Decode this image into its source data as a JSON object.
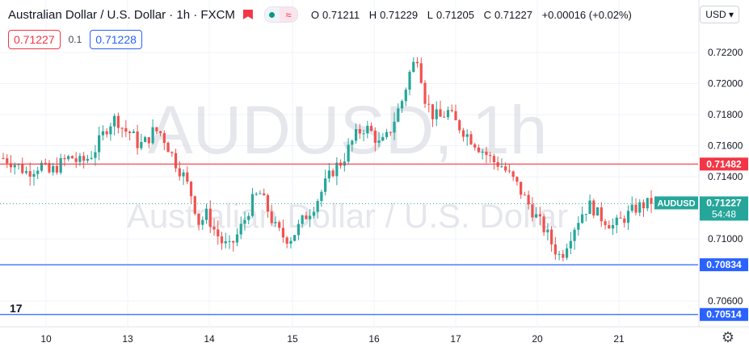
{
  "header": {
    "title": "Australian Dollar / U.S. Dollar · 1h · FXCM",
    "ohlc": {
      "open_label": "O",
      "open": "0.71211",
      "high_label": "H",
      "high": "0.71229",
      "low_label": "L",
      "low": "0.71205",
      "close_label": "C",
      "close": "0.71227",
      "change": "+0.00016 (+0.02%)"
    },
    "sell_price": "0.71227",
    "spread": "0.1",
    "buy_price": "0.71228",
    "currency_select": "USD"
  },
  "watermark": {
    "big": "AUDUSD, 1h",
    "small": "Australian Dollar / U.S. Dollar"
  },
  "colors": {
    "up": "#26a69a",
    "down": "#ef5350",
    "resistance": "#f23645",
    "support": "#2962ff",
    "price_tag": "#26a69a"
  },
  "chart_data": {
    "type": "candlestick",
    "symbol": "AUDUSD",
    "timeframe": "1h",
    "ylim": [
      0.7044,
      0.7233
    ],
    "y_ticks": [
      "0.72200",
      "0.72000",
      "0.71800",
      "0.71600",
      "0.71400",
      "0.71000",
      "0.70600"
    ],
    "x_ticks": [
      "10",
      "13",
      "14",
      "15",
      "16",
      "17",
      "20",
      "21"
    ],
    "horizontal_lines": [
      {
        "label": "0.71482",
        "value": 0.71482,
        "kind": "resistance"
      },
      {
        "label": "0.70834",
        "value": 0.70834,
        "kind": "support"
      },
      {
        "label": "0.70514",
        "value": 0.70514,
        "kind": "support"
      }
    ],
    "last_price": {
      "symbol": "AUDUSD",
      "price": "0.71227",
      "value": 0.71227,
      "countdown": "54:48"
    },
    "close_path": [
      0.7152,
      0.715,
      0.7147,
      0.7143,
      0.7145,
      0.7148,
      0.7142,
      0.7146,
      0.715,
      0.7153,
      0.7149,
      0.7151,
      0.7156,
      0.7165,
      0.7174,
      0.7178,
      0.717,
      0.7168,
      0.716,
      0.7163,
      0.717,
      0.7168,
      0.7158,
      0.7148,
      0.714,
      0.7128,
      0.711,
      0.7116,
      0.7106,
      0.7098,
      0.7094,
      0.7102,
      0.7112,
      0.7124,
      0.713,
      0.712,
      0.7108,
      0.7102,
      0.71,
      0.7106,
      0.7114,
      0.712,
      0.7128,
      0.7138,
      0.7146,
      0.715,
      0.716,
      0.7168,
      0.7172,
      0.7168,
      0.716,
      0.7166,
      0.7178,
      0.719,
      0.7208,
      0.7218,
      0.719,
      0.718,
      0.7178,
      0.7182,
      0.7175,
      0.717,
      0.7165,
      0.716,
      0.7155,
      0.715,
      0.7148,
      0.7142,
      0.7136,
      0.7128,
      0.712,
      0.7112,
      0.7105,
      0.7095,
      0.7088,
      0.71,
      0.711,
      0.7118,
      0.7122,
      0.7115,
      0.7112,
      0.7108,
      0.7112,
      0.7116,
      0.712,
      0.7122,
      0.71227
    ]
  }
}
